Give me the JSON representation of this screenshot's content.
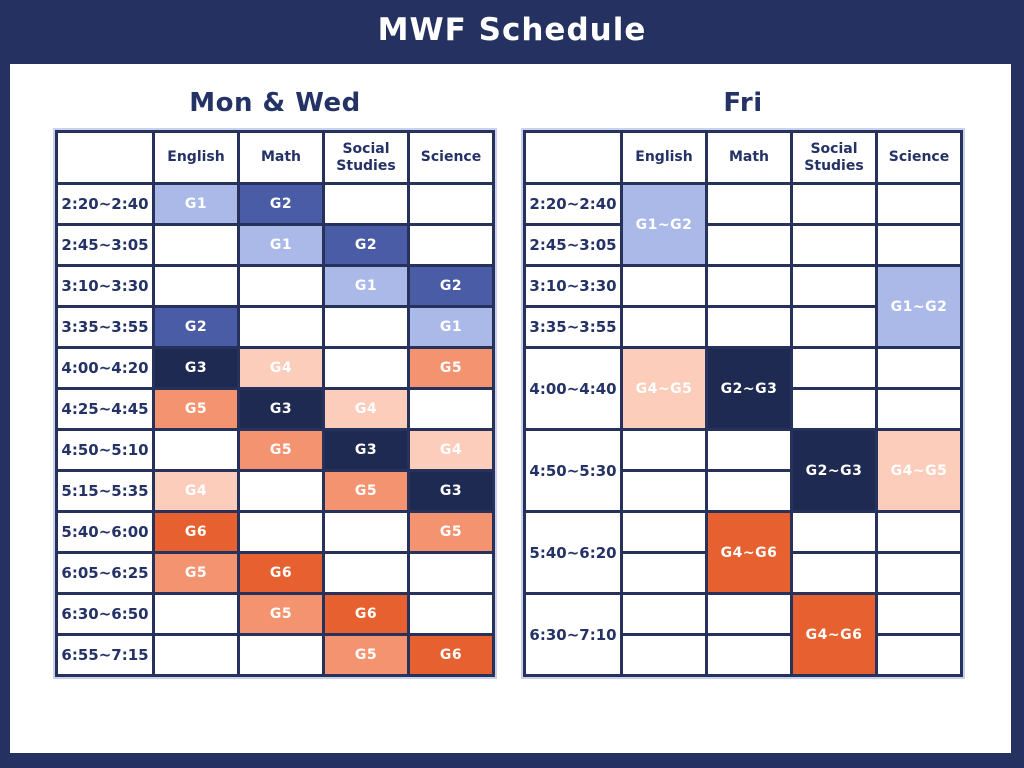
{
  "page_title": "MWF Schedule",
  "colors": {
    "background": "#253261",
    "grid_border": "#27325C",
    "table_glow": "#C9D1EC",
    "heading_text": "#243266",
    "cell_text": "#FFFFFF",
    "g1": "#ABB9E9",
    "g2": "#4A5CA6",
    "g3": "#1F2A52",
    "g4": "#FBCDBA",
    "g5": "#F4936F",
    "g6": "#E7602F"
  },
  "columns": [
    "English",
    "Math",
    "Social Studies",
    "Science"
  ],
  "tables": [
    {
      "title": "Mon & Wed",
      "grid": [
        [
          {
            "t": "2:20~2:40"
          },
          {
            "t": "G1",
            "c": "g1"
          },
          {
            "t": "G2",
            "c": "g2"
          },
          {},
          {}
        ],
        [
          {
            "t": "2:45~3:05"
          },
          {},
          {
            "t": "G1",
            "c": "g1"
          },
          {
            "t": "G2",
            "c": "g2"
          },
          {}
        ],
        [
          {
            "t": "3:10~3:30"
          },
          {},
          {},
          {
            "t": "G1",
            "c": "g1"
          },
          {
            "t": "G2",
            "c": "g2"
          }
        ],
        [
          {
            "t": "3:35~3:55"
          },
          {
            "t": "G2",
            "c": "g2"
          },
          {},
          {},
          {
            "t": "G1",
            "c": "g1"
          }
        ],
        [
          {
            "t": "4:00~4:20"
          },
          {
            "t": "G3",
            "c": "g3"
          },
          {
            "t": "G4",
            "c": "g4"
          },
          {},
          {
            "t": "G5",
            "c": "g5"
          }
        ],
        [
          {
            "t": "4:25~4:45"
          },
          {
            "t": "G5",
            "c": "g5"
          },
          {
            "t": "G3",
            "c": "g3"
          },
          {
            "t": "G4",
            "c": "g4"
          },
          {}
        ],
        [
          {
            "t": "4:50~5:10"
          },
          {},
          {
            "t": "G5",
            "c": "g5"
          },
          {
            "t": "G3",
            "c": "g3"
          },
          {
            "t": "G4",
            "c": "g4"
          }
        ],
        [
          {
            "t": "5:15~5:35"
          },
          {
            "t": "G4",
            "c": "g4"
          },
          {},
          {
            "t": "G5",
            "c": "g5"
          },
          {
            "t": "G3",
            "c": "g3"
          }
        ],
        [
          {
            "t": "5:40~6:00"
          },
          {
            "t": "G6",
            "c": "g6"
          },
          {},
          {},
          {
            "t": "G5",
            "c": "g5"
          }
        ],
        [
          {
            "t": "6:05~6:25"
          },
          {
            "t": "G5",
            "c": "g5"
          },
          {
            "t": "G6",
            "c": "g6"
          },
          {},
          {}
        ],
        [
          {
            "t": "6:30~6:50"
          },
          {},
          {
            "t": "G5",
            "c": "g5"
          },
          {
            "t": "G6",
            "c": "g6"
          },
          {}
        ],
        [
          {
            "t": "6:55~7:15"
          },
          {},
          {},
          {
            "t": "G5",
            "c": "g5"
          },
          {
            "t": "G6",
            "c": "g6"
          }
        ]
      ]
    },
    {
      "title": "Fri",
      "grid": [
        [
          {
            "t": "2:20~2:40"
          },
          {
            "t": "G1~G2",
            "c": "g1",
            "rs": 2
          },
          {},
          {},
          {}
        ],
        [
          {
            "t": "2:45~3:05"
          },
          null,
          {},
          {},
          {}
        ],
        [
          {
            "t": "3:10~3:30"
          },
          {},
          {},
          {},
          {
            "t": "G1~G2",
            "c": "g1",
            "rs": 2
          }
        ],
        [
          {
            "t": "3:35~3:55"
          },
          {},
          {},
          {},
          null
        ],
        [
          {
            "t": "4:00~4:40",
            "rs": 2
          },
          {
            "t": "G4~G5",
            "c": "g4",
            "rs": 2
          },
          {
            "t": "G2~G3",
            "c": "g3",
            "rs": 2
          },
          {},
          {}
        ],
        [
          null,
          null,
          null,
          {},
          {}
        ],
        [
          {
            "t": "4:50~5:30",
            "rs": 2
          },
          {},
          {},
          {
            "t": "G2~G3",
            "c": "g3",
            "rs": 2
          },
          {
            "t": "G4~G5",
            "c": "g4",
            "rs": 2
          }
        ],
        [
          null,
          {},
          {},
          null,
          null
        ],
        [
          {
            "t": "5:40~6:20",
            "rs": 2
          },
          {},
          {
            "t": "G4~G6",
            "c": "g6",
            "rs": 2
          },
          {},
          {}
        ],
        [
          null,
          {},
          null,
          {},
          {}
        ],
        [
          {
            "t": "6:30~7:10",
            "rs": 2
          },
          {},
          {},
          {
            "t": "G4~G6",
            "c": "g6",
            "rs": 2
          },
          {}
        ],
        [
          null,
          {},
          {},
          null,
          {}
        ]
      ]
    }
  ]
}
